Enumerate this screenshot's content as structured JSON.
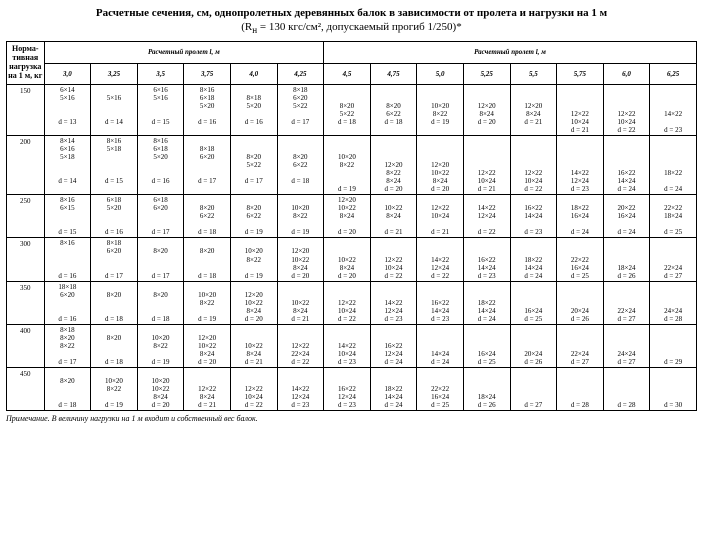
{
  "title": "Расчетные сечения, см, однопролетных деревянных балок в зависимости от пролета и нагрузки на 1 м",
  "subtitle": "(R<sub>н</sub> = 130 кгс/см², допускаемый прогиб 1/250)*",
  "group_left": "Расчетный пролет l, м",
  "group_right": "Расчетный пролет l, м",
  "rowhead_label": "Норма-\nтивная\nнагрузка\nна 1 м, кг",
  "cols_left": [
    "3,0",
    "3,25",
    "3,5",
    "3,75",
    "4,0",
    "4,25"
  ],
  "cols_right": [
    "4,5",
    "4,75",
    "5,0",
    "5,25",
    "5,5",
    "5,75",
    "6,0",
    "6,25"
  ],
  "note": "Примечание. В величину нагрузки на 1 м входит и собственный вес балок.",
  "rows": [
    {
      "h": "150",
      "c": [
        "6×14\n5×16\n\n\nd = 13",
        "\n5×16\n\n\nd = 14",
        "6×16\n5×16\n\n\nd = 15",
        "8×16\n6×18\n5×20\n\nd = 16",
        "\n8×18\n5×20\n\nd = 16",
        "8×18\n6×20\n5×22\n\nd = 17",
        "\n\n8×20\n5×22\nd = 18",
        "\n\n8×20\n6×22\nd = 18",
        "\n\n10×20\n8×22\nd = 19",
        "\n\n12×20\n8×24\nd = 20",
        "\n\n12×20\n8×24\nd = 21",
        "\n\n\n12×22\n10×24\nd = 21",
        "\n\n\n12×22\n10×24\nd = 22",
        "\n\n\n14×22\n\nd = 23"
      ]
    },
    {
      "h": "200",
      "c": [
        "8×14\n6×16\n5×18\n\n\nd = 14",
        "8×16\n5×18\n\n\n\nd = 15",
        "8×16\n6×18\n5×20\n\n\nd = 16",
        "\n8×18\n6×20\n\n\nd = 17",
        "\n\n8×20\n5×22\n\nd = 17",
        "\n\n8×20\n6×22\n\nd = 18",
        "\n\n10×20\n8×22\n\n\nd = 19",
        "\n\n\n12×20\n8×22\n8×24\nd = 20",
        "\n\n\n12×20\n10×22\n8×24\nd = 20",
        "\n\n\n\n12×22\n10×24\nd = 21",
        "\n\n\n\n12×22\n10×24\nd = 22",
        "\n\n\n\n14×22\n12×24\nd = 23",
        "\n\n\n\n16×22\n14×24\nd = 24",
        "\n\n\n\n18×22\n\nd = 24"
      ]
    },
    {
      "h": "250",
      "c": [
        "8×16\n6×15\n\n\nd = 15",
        "6×18\n5×20\n\n\nd = 16",
        "6×18\n6×20\n\n\nd = 17",
        "\n8×20\n6×22\n\nd = 18",
        "\n8×20\n6×22\n\nd = 19",
        "\n10×20\n8×22\n\nd = 19",
        "12×20\n10×22\n8×24\n\nd = 20",
        "\n10×22\n8×24\n\nd = 21",
        "\n12×22\n10×24\n\nd = 21",
        "\n14×22\n12×24\n\nd = 22",
        "\n16×22\n14×24\n\nd = 23",
        "\n18×22\n16×24\n\nd = 24",
        "\n20×22\n16×24\n\nd = 24",
        "\n22×22\n18×24\n\nd = 25"
      ]
    },
    {
      "h": "300",
      "c": [
        "8×16\n\n\n\nd = 16",
        "8×18\n6×20\n\n\nd = 17",
        "\n8×20\n\n\nd = 17",
        "\n8×20\n\n\nd = 18",
        "\n10×20\n8×22\n\nd = 19",
        "\n12×20\n10×22\n8×24\nd = 20",
        "\n\n10×22\n8×24\nd = 20",
        "\n\n12×22\n10×24\nd = 22",
        "\n\n14×22\n12×24\nd = 22",
        "\n\n16×22\n14×24\nd = 23",
        "\n\n18×22\n14×24\nd = 24",
        "\n\n22×22\n16×24\nd = 25",
        "\n\n\n18×24\nd = 26",
        "\n\n\n22×24\nd = 27"
      ]
    },
    {
      "h": "350",
      "c": [
        "18×18\n6×20\n\n\nd = 16",
        "\n8×20\n\n\nd = 18",
        "\n8×20\n\n\nd = 18",
        "\n10×20\n8×22\n\nd = 19",
        "\n12×20\n10×22\n8×24\nd = 20",
        "\n\n10×22\n8×24\nd = 21",
        "\n\n12×22\n10×24\nd = 22",
        "\n\n14×22\n12×24\nd = 23",
        "\n\n16×22\n14×24\nd = 23",
        "\n\n18×22\n14×24\nd = 24",
        "\n\n\n16×24\nd = 25",
        "\n\n\n20×24\nd = 26",
        "\n\n\n22×24\nd = 27",
        "\n\n\n24×24\nd = 28"
      ]
    },
    {
      "h": "400",
      "c": [
        "8×18\n8×20\n8×22\n\nd = 17",
        "\n8×20\n\n\nd = 18",
        "\n10×20\n8×22\n\nd = 19",
        "\n12×20\n10×22\n8×24\nd = 20",
        "\n\n10×22\n8×24\nd = 21",
        "\n\n12×22\n22×24\nd = 22",
        "\n\n14×22\n10×24\nd = 23",
        "\n\n16×22\n12×24\nd = 24",
        "\n\n\n14×24\nd = 24",
        "\n\n\n16×24\nd = 25",
        "\n\n\n20×24\nd = 26",
        "\n\n\n22×24\nd = 27",
        "\n\n\n24×24\nd = 27",
        "\n\n\n\nd = 29"
      ]
    },
    {
      "h": "450",
      "c": [
        "\n8×20\n\n\nd = 18",
        "\n10×20\n8×22\n\nd = 19",
        "\n10×20\n10×22\n8×24\nd = 20",
        "\n\n12×22\n8×24\nd = 21",
        "\n\n12×22\n10×24\nd = 22",
        "\n\n14×22\n12×24\nd = 23",
        "\n\n16×22\n12×24\nd = 23",
        "\n\n18×22\n14×24\nd = 24",
        "\n\n22×22\n16×24\nd = 25",
        "\n\n\n18×24\nd = 26",
        "\n\n\n\nd = 27",
        "\n\n\n\nd = 28",
        "\n\n\n\nd = 28",
        "\n\n\n\nd = 30"
      ]
    }
  ]
}
